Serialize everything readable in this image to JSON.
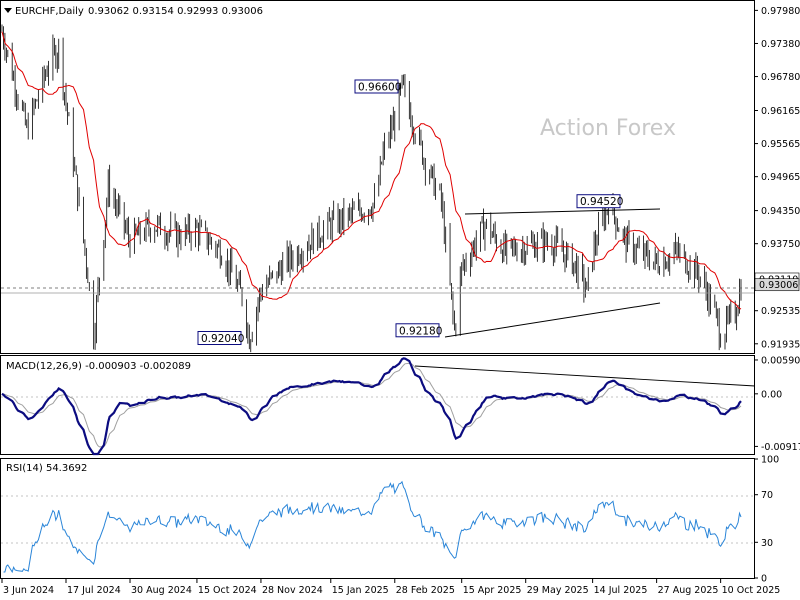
{
  "chart_data": [
    {
      "type": "ohlc-bar",
      "symbol": "EURCHF,Daily",
      "ohlc_header": "0.93062 0.93154 0.92993 0.93006",
      "ylim": [
        0.9175,
        0.9815
      ],
      "price_ticks": [
        "0.97980",
        "0.97380",
        "0.96780",
        "0.96165",
        "0.95565",
        "0.94965",
        "0.94350",
        "0.93750",
        "0.92535",
        "0.91935"
      ],
      "current_price": "0.93006",
      "marker_price": "0.93110",
      "annotations": [
        {
          "label": "0.96600",
          "price": 0.966
        },
        {
          "label": "0.94520",
          "price": 0.9452
        },
        {
          "label": "0.92180",
          "price": 0.9218
        },
        {
          "label": "0.92040",
          "price": 0.9204
        }
      ],
      "watermark": "Action Forex",
      "x_labels": [
        "3 Jun 2024",
        "17 Jul 2024",
        "30 Aug 2024",
        "15 Oct 2024",
        "28 Nov 2024",
        "15 Jan 2025",
        "28 Feb 2025",
        "15 Apr 2025",
        "29 May 2025",
        "14 Jul 2025",
        "27 Aug 2025",
        "10 Oct 2025"
      ],
      "close_path_approx": [
        {
          "date": "3 Jun 2024",
          "close": 0.976
        },
        {
          "date": "20 Jun 2024",
          "close": 0.958
        },
        {
          "date": "5 Jul 2024",
          "close": 0.97
        },
        {
          "date": "12 Jul 2024",
          "close": 0.973
        },
        {
          "date": "17 Jul 2024",
          "close": 0.963
        },
        {
          "date": "1 Aug 2024",
          "close": 0.932
        },
        {
          "date": "5 Aug 2024",
          "close": 0.921
        },
        {
          "date": "15 Aug 2024",
          "close": 0.948
        },
        {
          "date": "30 Aug 2024",
          "close": 0.938
        },
        {
          "date": "15 Sep 2024",
          "close": 0.941
        },
        {
          "date": "1 Oct 2024",
          "close": 0.939
        },
        {
          "date": "15 Oct 2024",
          "close": 0.94
        },
        {
          "date": "1 Nov 2024",
          "close": 0.936
        },
        {
          "date": "15 Nov 2024",
          "close": 0.928
        },
        {
          "date": "20 Nov 2024",
          "close": 0.9204
        },
        {
          "date": "28 Nov 2024",
          "close": 0.929
        },
        {
          "date": "15 Dec 2024",
          "close": 0.934
        },
        {
          "date": "1 Jan 2025",
          "close": 0.938
        },
        {
          "date": "15 Jan 2025",
          "close": 0.941
        },
        {
          "date": "1 Feb 2025",
          "close": 0.943
        },
        {
          "date": "15 Feb 2025",
          "close": 0.945
        },
        {
          "date": "20 Feb 2025",
          "close": 0.954
        },
        {
          "date": "28 Feb 2025",
          "close": 0.96
        },
        {
          "date": "5 Mar 2025",
          "close": 0.966
        },
        {
          "date": "20 Mar 2025",
          "close": 0.953
        },
        {
          "date": "1 Apr 2025",
          "close": 0.945
        },
        {
          "date": "10 Apr 2025",
          "close": 0.9218
        },
        {
          "date": "15 Apr 2025",
          "close": 0.933
        },
        {
          "date": "1 May 2025",
          "close": 0.941
        },
        {
          "date": "15 May 2025",
          "close": 0.936
        },
        {
          "date": "29 May 2025",
          "close": 0.937
        },
        {
          "date": "15 Jun 2025",
          "close": 0.938
        },
        {
          "date": "1 Jul 2025",
          "close": 0.934
        },
        {
          "date": "10 Jul 2025",
          "close": 0.929
        },
        {
          "date": "14 Jul 2025",
          "close": 0.936
        },
        {
          "date": "25 Jul 2025",
          "close": 0.945
        },
        {
          "date": "5 Aug 2025",
          "close": 0.938
        },
        {
          "date": "15 Aug 2025",
          "close": 0.936
        },
        {
          "date": "27 Aug 2025",
          "close": 0.934
        },
        {
          "date": "10 Sep 2025",
          "close": 0.936
        },
        {
          "date": "25 Sep 2025",
          "close": 0.932
        },
        {
          "date": "5 Oct 2025",
          "close": 0.926
        },
        {
          "date": "10 Oct 2025",
          "close": 0.921
        },
        {
          "date": "20 Oct 2025",
          "close": 0.925
        },
        {
          "date": "24 Oct 2025",
          "close": 0.93
        }
      ],
      "series": [
        {
          "name": "",
          "color": "#e00000",
          "kind": "moving-average"
        }
      ]
    },
    {
      "type": "macd",
      "label": "MACD(12,26,9) -0.000903 -0.002089",
      "ticks": [
        "0.005907",
        "0.00",
        "-0.009175"
      ],
      "ylim": [
        -0.0105,
        0.0066
      ],
      "colors": {
        "main": "#0c0c80",
        "signal": "#a0a0a0"
      }
    },
    {
      "type": "rsi",
      "label": "RSI(14) 54.3692",
      "ticks": [
        "100",
        "70",
        "30",
        "0"
      ],
      "ylim": [
        0,
        100
      ],
      "levels": [
        70,
        30
      ],
      "color": "#2a85d8"
    }
  ]
}
